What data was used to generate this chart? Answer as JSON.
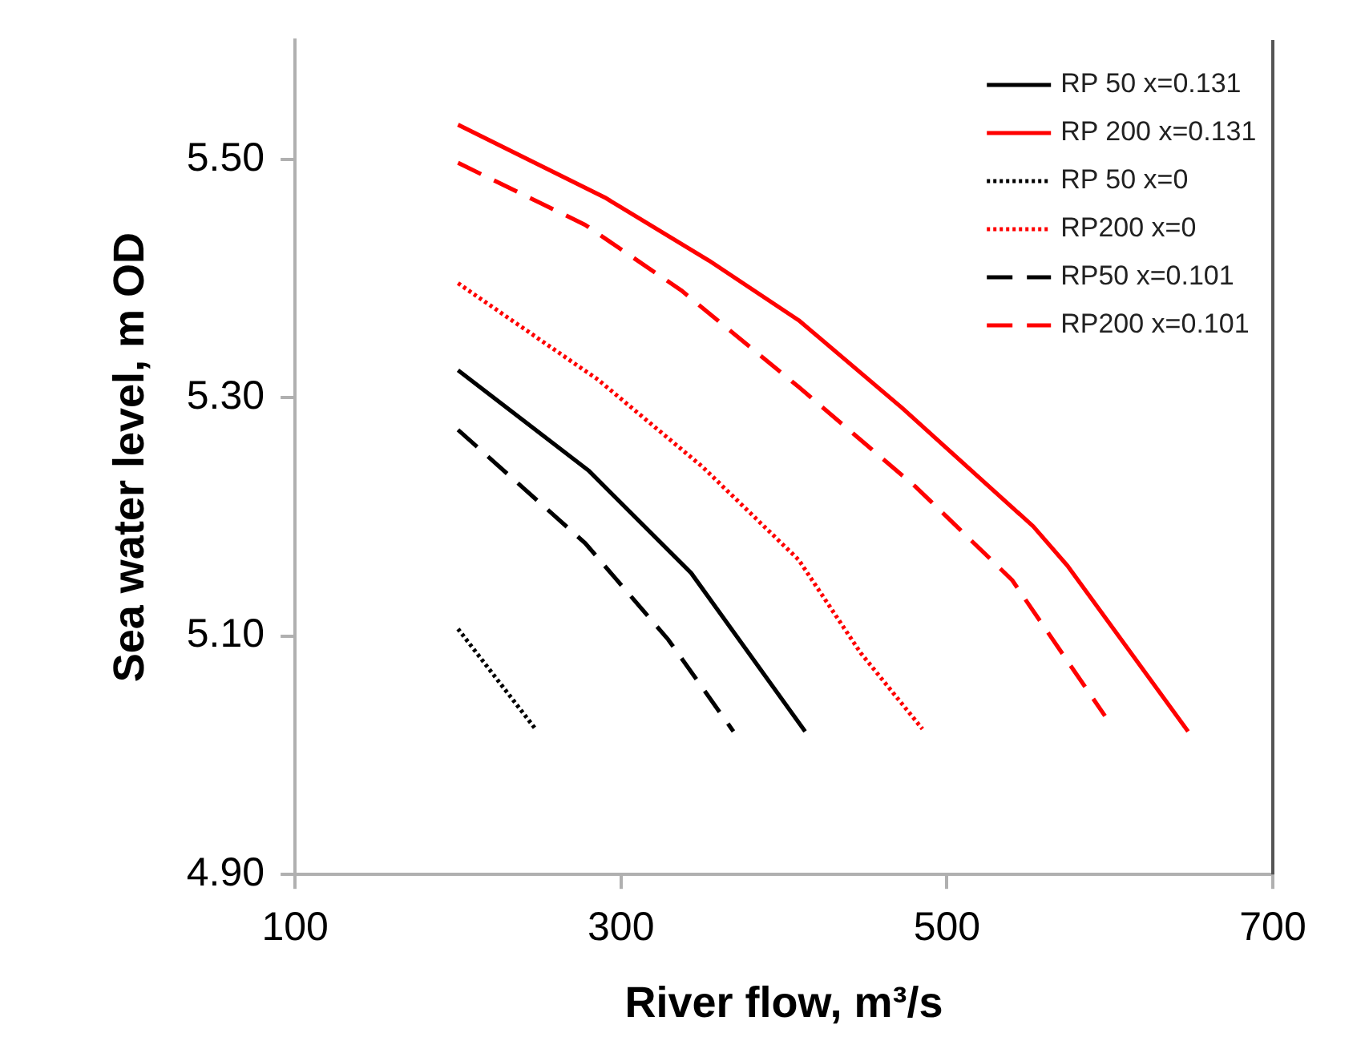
{
  "chart_data": {
    "type": "line",
    "xlabel": "River flow, m³/s",
    "ylabel": "Sea water level, m OD",
    "xlim": [
      100,
      700
    ],
    "xticks": [
      100,
      300,
      500,
      700
    ],
    "ylim": [
      4.9,
      5.6
    ],
    "yticks": [
      {
        "value": 4.9,
        "label": "4.90"
      },
      {
        "value": 5.1,
        "label": "5.10"
      },
      {
        "value": 5.3,
        "label": "5.30"
      },
      {
        "value": 5.5,
        "label": "5.50"
      }
    ],
    "grid": false,
    "legend": "top right",
    "marker": "none",
    "series": [
      {
        "name": "RP 50 x=0.131",
        "color": "#000000",
        "line_style": "solid",
        "x": [
          200,
          280,
          343,
          413
        ],
        "values": [
          5.323,
          5.239,
          5.153,
          5.02
        ]
      },
      {
        "name": "RP 200 x=0.131",
        "color": "#ff0000",
        "line_style": "solid",
        "x": [
          200,
          290,
          354,
          409,
          472,
          553,
          574,
          648
        ],
        "values": [
          5.529,
          5.468,
          5.415,
          5.365,
          5.292,
          5.192,
          5.159,
          5.02
        ]
      },
      {
        "name": "RP 50 x=0",
        "color": "#000000",
        "line_style": "dotted",
        "x": [
          200,
          247
        ],
        "values": [
          5.106,
          5.023
        ]
      },
      {
        "name": "RP200 x=0",
        "color": "#ff0000",
        "line_style": "dotted",
        "x": [
          200,
          286,
          350,
          409,
          447,
          485
        ],
        "values": [
          5.396,
          5.315,
          5.242,
          5.164,
          5.086,
          5.022
        ]
      },
      {
        "name": "RP50 x=0.101",
        "color": "#000000",
        "line_style": "dashed",
        "x": [
          200,
          278,
          329,
          369
        ],
        "values": [
          5.273,
          5.178,
          5.097,
          5.02
        ]
      },
      {
        "name": "RP200 x=0.101",
        "color": "#ff0000",
        "line_style": "dashed",
        "x": [
          200,
          278,
          337,
          409,
          481,
          540,
          597
        ],
        "values": [
          5.497,
          5.445,
          5.39,
          5.309,
          5.225,
          5.147,
          5.033
        ]
      }
    ]
  }
}
